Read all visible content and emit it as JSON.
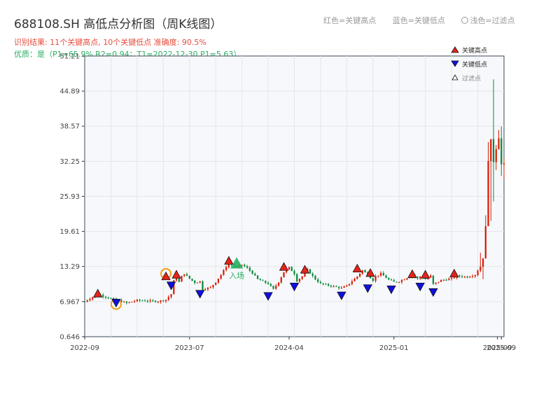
{
  "header": {
    "title": "688108.SH 高低点分析图（周K线图）",
    "result_line": "识别结果: 11个关键高点, 10个关键低点  准确度: 90.5%",
    "quality_line": "优质：是（P1=65.9%  R2=0.94；T1=2022-12-30 P1=5.63）"
  },
  "top_legend": {
    "red": "红色=关键高点",
    "blue": "蓝色=关键低点",
    "light": "浅色=过滤点"
  },
  "colors": {
    "up": "#d81e06",
    "down": "#0a8a3a",
    "high_marker": "#e8231c",
    "low_marker": "#1010e0",
    "entry_marker": "#27ae60",
    "orange_ring": "#f39c12",
    "plot_bg": "#f6f8fb",
    "grid": "#e3e6ea"
  },
  "chart_data": {
    "type": "candlestick",
    "y_ticks": [
      "0.646",
      "6.967",
      "13.29",
      "19.61",
      "25.93",
      "32.25",
      "38.57",
      "44.89",
      "51.21"
    ],
    "ylim": [
      0.646,
      51.21
    ],
    "x_ticks": [
      {
        "label": "2022-09",
        "t": 0
      },
      {
        "label": "2023-07",
        "t": 40
      },
      {
        "label": "2024-04",
        "t": 78
      },
      {
        "label": "2025-01",
        "t": 118
      },
      {
        "label": "2025-09",
        "t": 157.5
      },
      {
        "label": "2025-09",
        "t": 159
      }
    ],
    "t_range": [
      0,
      160
    ],
    "legend": {
      "high": "关键高点",
      "low": "关键低点",
      "filtered": "过滤点",
      "placement": "top-right"
    },
    "entry_label": "入场",
    "anchors": [
      [
        0,
        7.0
      ],
      [
        5,
        8.3
      ],
      [
        8,
        7.8
      ],
      [
        12,
        7.3
      ],
      [
        16,
        6.7
      ],
      [
        20,
        7.2
      ],
      [
        28,
        7.0
      ],
      [
        31,
        7.3
      ],
      [
        33,
        8.3
      ],
      [
        34,
        10.7
      ],
      [
        35,
        11.2
      ],
      [
        36,
        10.5
      ],
      [
        37,
        11.5
      ],
      [
        38,
        12.0
      ],
      [
        40,
        11.1
      ],
      [
        42,
        10.4
      ],
      [
        44,
        10.6
      ],
      [
        45,
        9.2
      ],
      [
        48,
        9.5
      ],
      [
        50,
        10.5
      ],
      [
        52,
        11.8
      ],
      [
        55,
        14.0
      ],
      [
        57,
        13.3
      ],
      [
        58,
        13.2
      ],
      [
        60,
        13.6
      ],
      [
        62,
        13.0
      ],
      [
        64,
        12.1
      ],
      [
        66,
        11.0
      ],
      [
        70,
        10.2
      ],
      [
        72,
        9.2
      ],
      [
        74,
        10.5
      ],
      [
        76,
        12.3
      ],
      [
        78,
        13.1
      ],
      [
        80,
        12.0
      ],
      [
        81,
        10.7
      ],
      [
        83,
        11.5
      ],
      [
        85,
        12.7
      ],
      [
        88,
        11.0
      ],
      [
        90,
        10.2
      ],
      [
        94,
        9.8
      ],
      [
        98,
        9.4
      ],
      [
        100,
        9.8
      ],
      [
        104,
        11.5
      ],
      [
        106,
        12.6
      ],
      [
        108,
        11.8
      ],
      [
        110,
        10.8
      ],
      [
        111,
        11.5
      ],
      [
        113,
        12.0
      ],
      [
        116,
        10.9
      ],
      [
        118,
        10.5
      ],
      [
        120,
        10.6
      ],
      [
        124,
        11.5
      ],
      [
        125,
        11.8
      ],
      [
        127,
        11.1
      ],
      [
        128,
        11.5
      ],
      [
        130,
        11.0
      ],
      [
        132,
        11.6
      ],
      [
        133,
        10.1
      ],
      [
        136,
        10.8
      ],
      [
        140,
        11.1
      ],
      [
        142,
        11.6
      ],
      [
        146,
        11.4
      ],
      [
        149,
        11.8
      ],
      [
        151,
        13.4
      ],
      [
        152,
        15.3
      ],
      [
        153,
        20.0
      ],
      [
        154,
        33.0
      ],
      [
        155,
        35.5
      ],
      [
        156,
        32.5
      ],
      [
        157,
        35.0
      ],
      [
        158,
        37.0
      ],
      [
        159,
        31.6
      ],
      [
        160,
        31.2
      ]
    ],
    "spikes": [
      {
        "t": 154,
        "low": 22.0,
        "high": 35.7
      },
      {
        "t": 155,
        "low": 21.5,
        "high": 35.2
      },
      {
        "t": 156,
        "low": 25.0,
        "high": 47.0
      }
    ],
    "key_highs": [
      {
        "t": 5,
        "v": 8.3
      },
      {
        "t": 31,
        "v": 11.4
      },
      {
        "t": 35,
        "v": 11.7
      },
      {
        "t": 55,
        "v": 14.2
      },
      {
        "t": 76,
        "v": 13.1
      },
      {
        "t": 84,
        "v": 12.6
      },
      {
        "t": 104,
        "v": 12.8
      },
      {
        "t": 109,
        "v": 12.0
      },
      {
        "t": 125,
        "v": 11.8
      },
      {
        "t": 130,
        "v": 11.7
      },
      {
        "t": 141,
        "v": 11.9
      }
    ],
    "key_lows": [
      {
        "t": 12,
        "v": 6.9
      },
      {
        "t": 33,
        "v": 10.0
      },
      {
        "t": 44,
        "v": 8.5
      },
      {
        "t": 70,
        "v": 8.1
      },
      {
        "t": 80,
        "v": 9.8
      },
      {
        "t": 98,
        "v": 8.2
      },
      {
        "t": 108,
        "v": 9.5
      },
      {
        "t": 117,
        "v": 9.3
      },
      {
        "t": 128,
        "v": 9.8
      },
      {
        "t": 133,
        "v": 8.8
      }
    ],
    "entry": {
      "t": 58,
      "v": 13.7
    },
    "orange_rings": [
      {
        "t": 12,
        "v": 6.5
      },
      {
        "t": 31,
        "v": 12.0
      }
    ]
  }
}
